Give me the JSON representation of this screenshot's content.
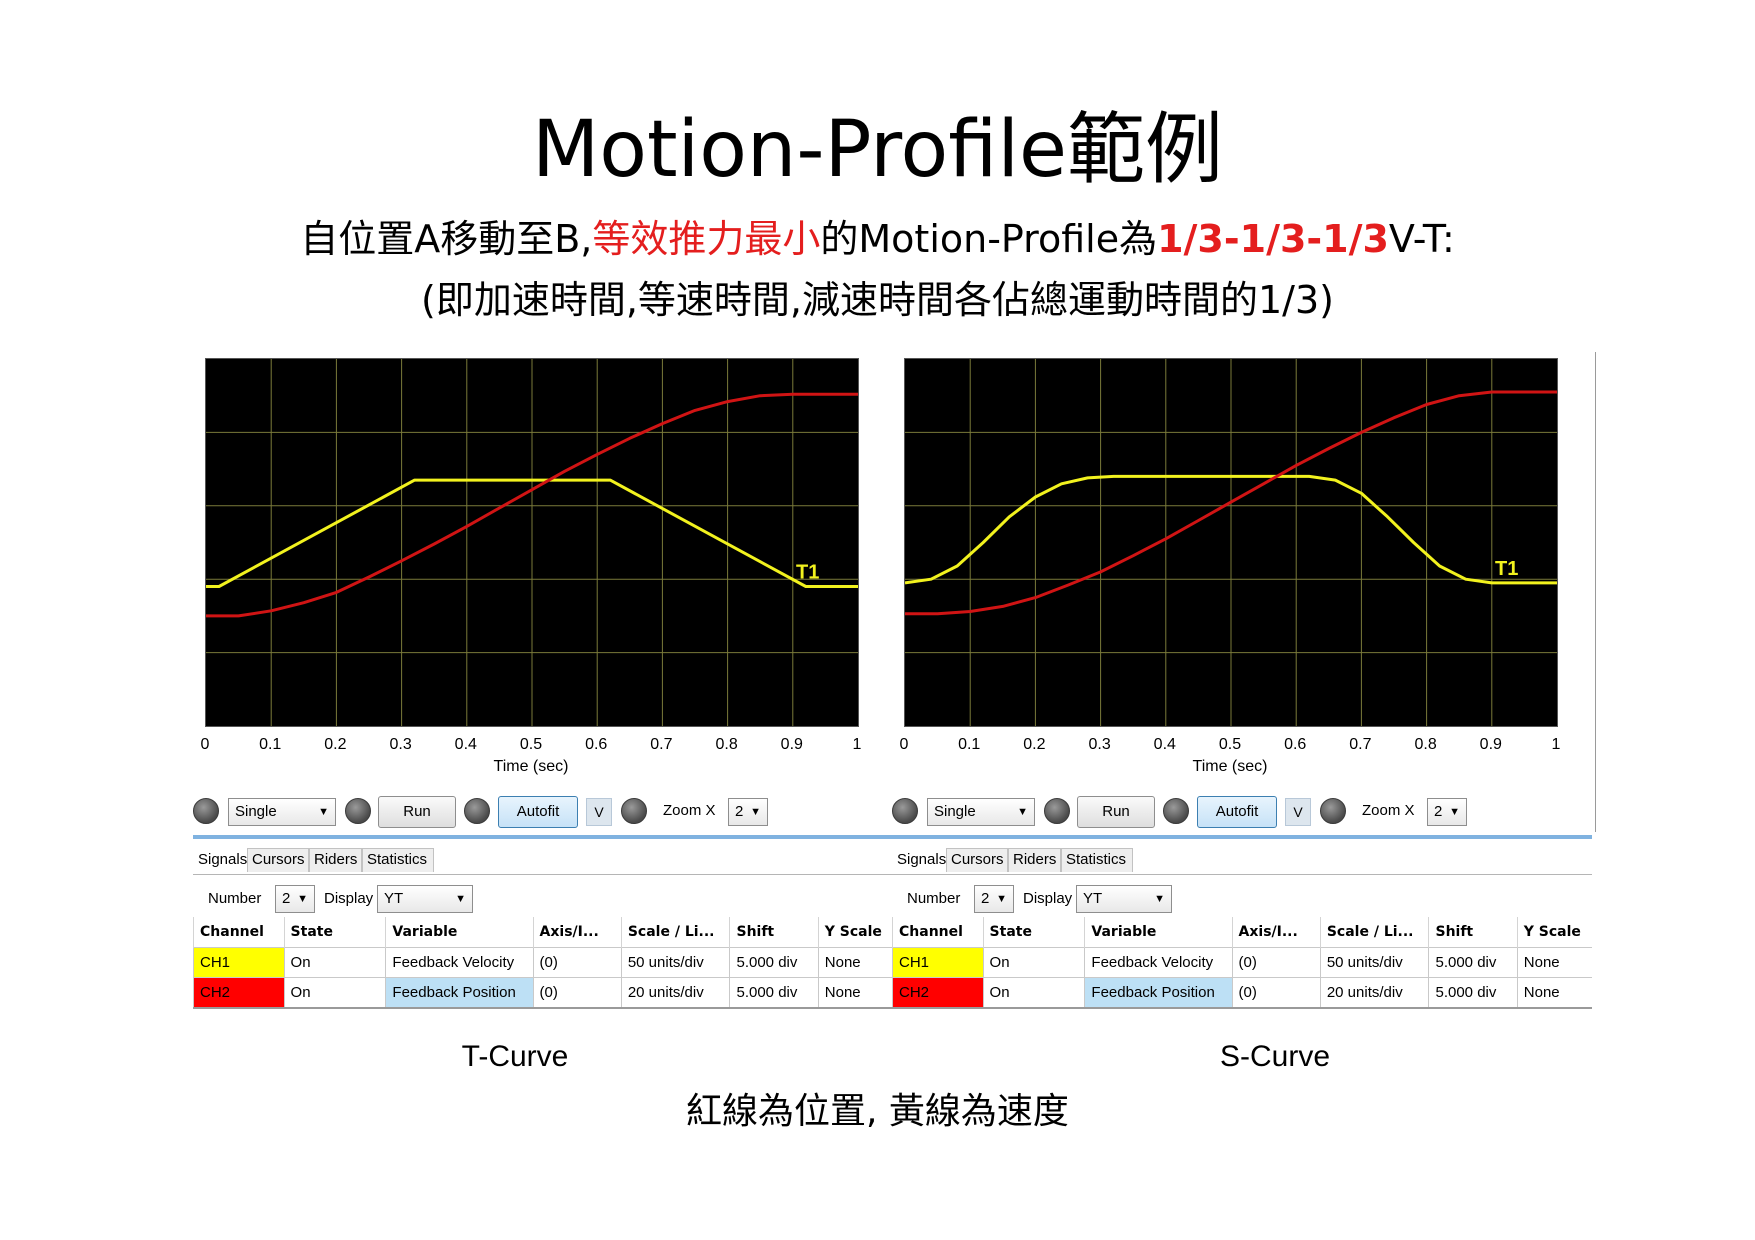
{
  "title": "Motion-Profile範例",
  "subtitle": {
    "line1_a": "自位置A移動至B,",
    "line1_b": "等效推力最小",
    "line1_c": "的Motion-Profile為",
    "line1_d": "1/3-1/3-1/3",
    "line1_e": "V-T:",
    "line2": "(即加速時間,等速時間,減速時間各佔總運動時間的1/3)"
  },
  "colors": {
    "accent_red": "#e41e1e",
    "velocity": "#f2f21e",
    "position": "#d01414",
    "grid": "#7a7a3a"
  },
  "panels": [
    {
      "caption": "T-Curve",
      "marker_label": "T1",
      "xlabel": "Time (sec)",
      "controls": {
        "mode": "Single",
        "run": "Run",
        "autofit": "Autofit",
        "v": "V",
        "zoom_label": "Zoom X",
        "zoom_value": "2"
      },
      "tabs": [
        "Signals",
        "Cursors",
        "Riders",
        "Statistics"
      ],
      "number_label": "Number",
      "number_value": "2",
      "display_label": "Display",
      "display_value": "YT",
      "headers": [
        "Channel",
        "State",
        "Variable",
        "Axis/I...",
        "Scale / Li...",
        "Shift",
        "Y Scale"
      ],
      "rows": [
        [
          "CH1",
          "On",
          "Feedback Velocity",
          "(0)",
          "50 units/div",
          "5.000 div",
          "None"
        ],
        [
          "CH2",
          "On",
          "Feedback Position",
          "(0)",
          "20 units/div",
          "5.000 div",
          "None"
        ]
      ],
      "chart_data": {
        "type": "line",
        "x_ticks": [
          "0",
          "0.1",
          "0.2",
          "0.3",
          "0.4",
          "0.5",
          "0.6",
          "0.7",
          "0.8",
          "0.9",
          "1"
        ],
        "xlim": [
          0,
          1
        ],
        "grid": true,
        "series": [
          {
            "name": "CH1",
            "color": "#f2f21e",
            "x": [
              0,
              0.02,
              0.32,
              0.62,
              0.92,
              1.0
            ],
            "y": [
              1.9,
              1.9,
              3.35,
              3.35,
              1.9,
              1.9
            ]
          },
          {
            "name": "CH2",
            "color": "#d01414",
            "x": [
              0,
              0.05,
              0.1,
              0.15,
              0.2,
              0.25,
              0.3,
              0.35,
              0.4,
              0.45,
              0.5,
              0.55,
              0.6,
              0.65,
              0.7,
              0.75,
              0.8,
              0.85,
              0.9,
              0.95,
              1.0
            ],
            "y": [
              1.5,
              1.5,
              1.57,
              1.68,
              1.82,
              2.03,
              2.25,
              2.48,
              2.72,
              2.97,
              3.22,
              3.47,
              3.7,
              3.92,
              4.12,
              4.3,
              4.42,
              4.5,
              4.52,
              4.52,
              4.52
            ]
          }
        ]
      }
    },
    {
      "caption": "S-Curve",
      "marker_label": "T1",
      "xlabel": "Time (sec)",
      "controls": {
        "mode": "Single",
        "run": "Run",
        "autofit": "Autofit",
        "v": "V",
        "zoom_label": "Zoom X",
        "zoom_value": "2"
      },
      "tabs": [
        "Signals",
        "Cursors",
        "Riders",
        "Statistics"
      ],
      "number_label": "Number",
      "number_value": "2",
      "display_label": "Display",
      "display_value": "YT",
      "headers": [
        "Channel",
        "State",
        "Variable",
        "Axis/I...",
        "Scale / Li...",
        "Shift",
        "Y Scale"
      ],
      "rows": [
        [
          "CH1",
          "On",
          "Feedback Velocity",
          "(0)",
          "50 units/div",
          "5.000 div",
          "None"
        ],
        [
          "CH2",
          "On",
          "Feedback Position",
          "(0)",
          "20 units/div",
          "5.000 div",
          "None"
        ]
      ],
      "chart_data": {
        "type": "line",
        "x_ticks": [
          "0",
          "0.1",
          "0.2",
          "0.3",
          "0.4",
          "0.5",
          "0.6",
          "0.7",
          "0.8",
          "0.9",
          "1"
        ],
        "xlim": [
          0,
          1
        ],
        "grid": true,
        "series": [
          {
            "name": "CH1",
            "color": "#f2f21e",
            "x": [
              0,
              0.04,
              0.08,
              0.12,
              0.16,
              0.2,
              0.24,
              0.28,
              0.32,
              0.62,
              0.66,
              0.7,
              0.74,
              0.78,
              0.82,
              0.86,
              0.9,
              0.94,
              1.0
            ],
            "y": [
              1.95,
              2.0,
              2.18,
              2.5,
              2.85,
              3.12,
              3.3,
              3.38,
              3.4,
              3.4,
              3.35,
              3.17,
              2.85,
              2.5,
              2.18,
              2.0,
              1.95,
              1.95,
              1.95
            ]
          },
          {
            "name": "CH2",
            "color": "#d01414",
            "x": [
              0,
              0.05,
              0.1,
              0.15,
              0.2,
              0.25,
              0.3,
              0.35,
              0.4,
              0.45,
              0.5,
              0.55,
              0.6,
              0.65,
              0.7,
              0.75,
              0.8,
              0.85,
              0.9,
              0.95,
              1.0
            ],
            "y": [
              1.53,
              1.53,
              1.56,
              1.63,
              1.75,
              1.92,
              2.1,
              2.32,
              2.55,
              2.8,
              3.05,
              3.3,
              3.55,
              3.78,
              4.0,
              4.2,
              4.38,
              4.5,
              4.55,
              4.55,
              4.55
            ]
          }
        ]
      }
    }
  ],
  "footer": "紅線為位置, 黃線為速度"
}
